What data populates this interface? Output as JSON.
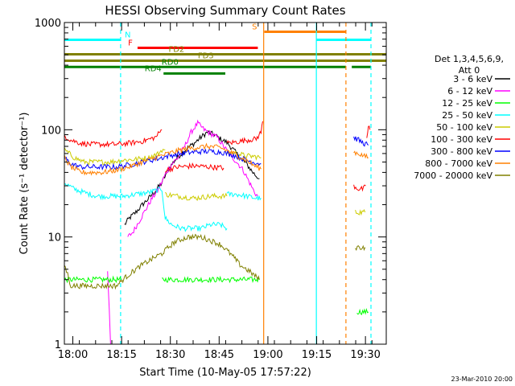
{
  "chart_data": {
    "type": "line",
    "title": "HESSI Observing Summary Count Rates",
    "xlabel": "Start Time (10-May-05 17:57:22)",
    "ylabel": "Count Rate (s⁻¹ detector⁻¹)",
    "x_unit": "minutes after 17:57:22",
    "xlim": [
      0,
      99
    ],
    "ylim": [
      1,
      1000
    ],
    "yscale": "log",
    "x_ticks": [
      {
        "t": 2.6,
        "label": "18:00"
      },
      {
        "t": 17.6,
        "label": "18:15"
      },
      {
        "t": 32.6,
        "label": "18:30"
      },
      {
        "t": 47.6,
        "label": "18:45"
      },
      {
        "t": 62.6,
        "label": "19:00"
      },
      {
        "t": 77.6,
        "label": "19:15"
      },
      {
        "t": 92.6,
        "label": "19:30"
      }
    ],
    "y_ticks": [
      {
        "v": 1,
        "label": "1"
      },
      {
        "v": 10,
        "label": "10"
      },
      {
        "v": 100,
        "label": "100"
      },
      {
        "v": 1000,
        "label": "1000"
      }
    ],
    "legend": {
      "placement": "right",
      "header": [
        "Det 1,3,4,5,6,9,",
        "Att 0"
      ],
      "entries": [
        {
          "label": "3 - 6 keV",
          "color": "#000000"
        },
        {
          "label": "6 - 12 keV",
          "color": "#ff00ff"
        },
        {
          "label": "12 - 25 keV",
          "color": "#00ff00"
        },
        {
          "label": "25 - 50 keV",
          "color": "#00ffff"
        },
        {
          "label": "50 - 100 keV",
          "color": "#cccc00"
        },
        {
          "label": "100 - 300 keV",
          "color": "#ff0000"
        },
        {
          "label": "300 - 800 keV",
          "color": "#0000ff"
        },
        {
          "label": "800 - 7000 keV",
          "color": "#ff8000"
        },
        {
          "label": "7000 - 20000 keV",
          "color": "#808000"
        }
      ]
    },
    "flag_bars": [
      {
        "label": "N",
        "color": "#00ffff",
        "level": 690,
        "ranges": [
          [
            0,
            17.3
          ],
          [
            77.5,
            94.3
          ]
        ],
        "label_at": 19.5
      },
      {
        "label": "F",
        "color": "#ff0000",
        "level": 580,
        "ranges": [
          [
            22.5,
            59.5
          ]
        ],
        "label_at": 20.3
      },
      {
        "label": "S",
        "color": "#ff8000",
        "level": 820,
        "ranges": [
          [
            61.5,
            86.5
          ]
        ],
        "label_at": 58.5
      },
      {
        "label": "FD2",
        "color": "#808000",
        "level": 505,
        "ranges": [
          [
            0,
            99
          ]
        ],
        "label_at": 34.5
      },
      {
        "label": "FD3",
        "color": "#808000",
        "level": 440,
        "ranges": [
          [
            0,
            99
          ]
        ],
        "label_at": 43.5
      },
      {
        "label": "RD0",
        "color": "#008000",
        "level": 385,
        "ranges": [
          [
            0,
            86.6
          ],
          [
            88.4,
            94.3
          ]
        ],
        "label_at": 32.5
      },
      {
        "label": "RD4",
        "color": "#008000",
        "level": 335,
        "ranges": [
          [
            30.5,
            49.5
          ]
        ],
        "label_at": 27.3
      }
    ],
    "vlines": [
      {
        "t": 17.3,
        "color": "#00ffff",
        "style": "dashed"
      },
      {
        "t": 77.5,
        "color": "#00ffff",
        "style": "solid"
      },
      {
        "t": 61.3,
        "color": "#ff8000",
        "style": "solid"
      },
      {
        "t": 86.6,
        "color": "#ff8000",
        "style": "dashed"
      },
      {
        "t": 94.3,
        "color": "#00ffff",
        "style": "dashed"
      }
    ],
    "series": [
      {
        "name": "3 - 6 keV",
        "color": "#000000",
        "segments": [
          {
            "x": [
              18.5,
              20,
              22,
              24,
              26,
              28,
              30,
              32,
              34,
              36,
              38,
              40,
              42,
              44,
              46,
              48,
              50,
              52,
              54,
              56,
              58,
              59,
              60
            ],
            "y": [
              13,
              15,
              17,
              20,
              23,
              27,
              32,
              43,
              52,
              60,
              68,
              75,
              85,
              95,
              90,
              82,
              76,
              65,
              55,
              48,
              40,
              37,
              35
            ]
          }
        ]
      },
      {
        "name": "6 - 12 keV",
        "color": "#ff00ff",
        "segments": [
          {
            "x": [
              13.3,
              13.8,
              14.2
            ],
            "y": [
              5,
              2,
              1
            ]
          },
          {
            "x": [
              19.5,
              21,
              23,
              25,
              27,
              29,
              31,
              33,
              35,
              37,
              39,
              41,
              43,
              45,
              47,
              49,
              51,
              53,
              55,
              57,
              58.5,
              59.5
            ],
            "y": [
              10,
              11,
              14,
              18,
              23,
              28,
              38,
              48,
              55,
              70,
              95,
              115,
              100,
              92,
              85,
              70,
              58,
              50,
              42,
              32,
              26,
              24
            ]
          }
        ]
      },
      {
        "name": "12 - 25 keV",
        "color": "#00ff00",
        "segments": [
          {
            "x": [
              0,
              5,
              10,
              15,
              17.5
            ],
            "y": [
              4,
              4,
              4,
              4,
              4
            ]
          },
          {
            "x": [
              30,
              35,
              40,
              45,
              50,
              55,
              60
            ],
            "y": [
              4,
              4,
              4,
              4,
              4,
              4,
              4
            ]
          },
          {
            "x": [
              90,
              92,
              93.5
            ],
            "y": [
              2,
              2,
              2
            ]
          }
        ]
      },
      {
        "name": "25 - 50 keV",
        "color": "#00ffff",
        "segments": [
          {
            "x": [
              0,
              3,
              6,
              10,
              14,
              18,
              22,
              26,
              30,
              31,
              33,
              36,
              39,
              42,
              45,
              48,
              50
            ],
            "y": [
              32,
              28,
              26,
              24,
              24,
              24,
              25,
              26,
              28,
              15,
              13,
              12,
              12,
              12,
              13,
              13,
              12
            ]
          },
          {
            "x": [
              50,
              53,
              56,
              59,
              60.5
            ],
            "y": [
              25,
              25,
              24,
              23,
              23
            ]
          }
        ]
      },
      {
        "name": "50 - 100 keV",
        "color": "#cccc00",
        "segments": [
          {
            "x": [
              0,
              3,
              6,
              10,
              14,
              18,
              22,
              26,
              29,
              30,
              31
            ],
            "y": [
              65,
              55,
              50,
              50,
              50,
              52,
              53,
              55,
              60,
              65,
              65
            ]
          },
          {
            "x": [
              31,
              35,
              40,
              45,
              50
            ],
            "y": [
              25,
              24,
              23,
              24,
              24
            ]
          },
          {
            "x": [
              50,
              53,
              56,
              59,
              60.5
            ],
            "y": [
              62,
              60,
              57,
              56,
              55
            ]
          },
          {
            "x": [
              89.5,
              91,
              92.5
            ],
            "y": [
              17,
              17,
              17
            ]
          }
        ]
      },
      {
        "name": "100 - 300 keV",
        "color": "#ff0000",
        "segments": [
          {
            "x": [
              0,
              2,
              5,
              8,
              12,
              16,
              20,
              24,
              28,
              30
            ],
            "y": [
              88,
              80,
              75,
              73,
              73,
              73,
              75,
              78,
              85,
              100
            ]
          },
          {
            "x": [
              31,
              35,
              40,
              45,
              49
            ],
            "y": [
              42,
              45,
              46,
              45,
              44
            ]
          },
          {
            "x": [
              50,
              53,
              56,
              59,
              60.5,
              61
            ],
            "y": [
              75,
              77,
              80,
              82,
              95,
              120
            ]
          },
          {
            "x": [
              89,
              90.5,
              92,
              92.7
            ],
            "y": [
              30,
              28,
              28,
              30
            ]
          },
          {
            "x": [
              93,
              93.5,
              94
            ],
            "y": [
              80,
              110,
              100
            ]
          }
        ]
      },
      {
        "name": "300 - 800 keV",
        "color": "#0000ff",
        "segments": [
          {
            "x": [
              0,
              2,
              5,
              8,
              12,
              16,
              20,
              24,
              28,
              32,
              36,
              40,
              44,
              48,
              52,
              56,
              58,
              60.5
            ],
            "y": [
              55,
              48,
              45,
              45,
              45,
              45,
              47,
              50,
              53,
              57,
              60,
              62,
              63,
              62,
              58,
              52,
              50,
              48
            ]
          },
          {
            "x": [
              89,
              90.5,
              92,
              93.5
            ],
            "y": [
              85,
              80,
              75,
              72
            ]
          }
        ]
      },
      {
        "name": "800 - 7000 keV",
        "color": "#ff8000",
        "segments": [
          {
            "x": [
              0,
              2,
              5,
              8,
              12,
              16,
              20,
              24,
              28,
              32,
              36,
              40,
              44,
              48,
              52,
              56,
              58,
              60.5
            ],
            "y": [
              55,
              45,
              40,
              40,
              40,
              42,
              45,
              50,
              55,
              60,
              65,
              68,
              70,
              68,
              60,
              52,
              47,
              43
            ]
          },
          {
            "x": [
              89,
              90.5,
              92,
              93.5
            ],
            "y": [
              62,
              60,
              57,
              55
            ]
          }
        ]
      },
      {
        "name": "7000 - 20000 keV",
        "color": "#808000",
        "segments": [
          {
            "x": [
              0,
              1,
              2,
              3,
              5,
              8,
              12,
              16,
              18,
              20,
              22,
              24,
              26,
              28,
              30,
              32,
              34,
              36,
              38,
              40,
              42,
              44,
              46,
              48,
              50,
              52,
              54,
              56,
              58,
              60
            ],
            "y": [
              5.5,
              4.5,
              3.5,
              3.5,
              3.5,
              3.5,
              3.5,
              3.5,
              4,
              4.5,
              5,
              5.5,
              6,
              6.5,
              7,
              8,
              9,
              9.5,
              10,
              10,
              10,
              9.5,
              9,
              8.5,
              7.5,
              6.5,
              5.5,
              5,
              4.5,
              4
            ]
          },
          {
            "x": [
              89.5,
              91,
              92.5
            ],
            "y": [
              8,
              8,
              8
            ]
          }
        ]
      }
    ]
  },
  "footer": {
    "date": "23-Mar-2010 20:00"
  }
}
